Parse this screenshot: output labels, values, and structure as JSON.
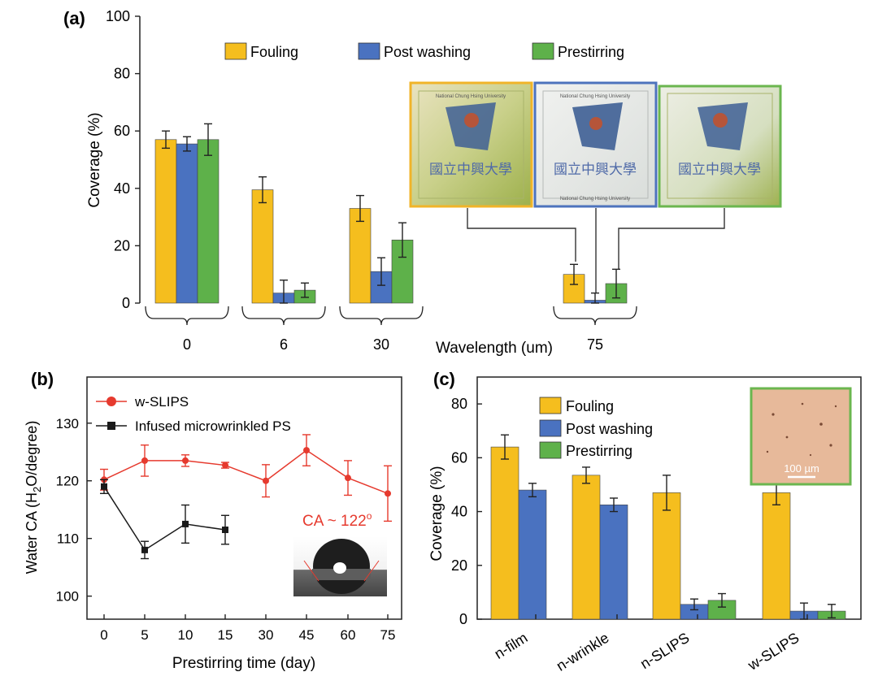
{
  "colors": {
    "fouling": "#F5BE1E",
    "post_washing": "#4A72C0",
    "prestirring": "#5EB14A",
    "wslips": "#E63A2E",
    "infused": "#1a1a1a",
    "photo_border_orange": "#F0B429",
    "photo_border_blue": "#4D73BD",
    "photo_border_green": "#6BB64F",
    "inset_border_green": "#6BB64F",
    "inset_bg": "#E7B99A"
  },
  "chart_data": [
    {
      "panel": "a",
      "panel_label": "(a)",
      "type": "bar",
      "xlabel": "Wavelength (um)",
      "ylabel": "Coverage (%)",
      "ylim": [
        0,
        100
      ],
      "yticks": [
        "0",
        "20",
        "40",
        "60",
        "80",
        "100"
      ],
      "categories": [
        "0",
        "6",
        "30",
        "75"
      ],
      "legend": [
        "Fouling",
        "Post washing",
        "Prestirring"
      ],
      "series": [
        {
          "name": "Fouling",
          "values": [
            57,
            39.5,
            33,
            10
          ],
          "errors": [
            3,
            4.5,
            4.5,
            3.5
          ]
        },
        {
          "name": "Post washing",
          "values": [
            55.5,
            3.5,
            11,
            1
          ],
          "errors": [
            2.5,
            4.5,
            4.8,
            2.5
          ]
        },
        {
          "name": "Prestirring",
          "values": [
            57,
            4.5,
            22,
            6.8
          ],
          "errors": [
            5.5,
            2.5,
            6,
            5
          ]
        }
      ],
      "photo_labels": [
        "National Chung Hsing University",
        "國立中興大學"
      ]
    },
    {
      "panel": "b",
      "panel_label": "(b)",
      "type": "line",
      "xlabel": "Prestirring time (day)",
      "ylabel_main": "Water CA (H",
      "ylabel_sub": "2",
      "ylabel_end": "O/degree)",
      "x_ticks": [
        "0",
        "5",
        "10",
        "15",
        "30",
        "45",
        "60",
        "75"
      ],
      "yticks": [
        "100",
        "110",
        "120",
        "130"
      ],
      "ylim": [
        96,
        138
      ],
      "series": [
        {
          "name": "w-SLIPS",
          "x_index": [
            0,
            1,
            2,
            3,
            4,
            5,
            6,
            7
          ],
          "values": [
            120.2,
            123.5,
            123.5,
            122.7,
            120,
            125.3,
            120.5,
            117.8
          ],
          "errors": [
            1.8,
            2.7,
            1,
            0.5,
            2.8,
            2.7,
            3,
            4.8
          ]
        },
        {
          "name": "Infused microwrinkled PS",
          "x_index": [
            0,
            1,
            2,
            3
          ],
          "values": [
            119,
            108,
            112.5,
            111.5
          ],
          "errors": [
            1.2,
            1.5,
            3.3,
            2.5
          ]
        }
      ],
      "annotation": "CA ~ 122",
      "annotation_sup": "o"
    },
    {
      "panel": "c",
      "panel_label": "(c)",
      "type": "bar",
      "ylabel": "Coverage (%)",
      "ylim": [
        0,
        90
      ],
      "yticks": [
        "0",
        "20",
        "40",
        "60",
        "80"
      ],
      "categories": [
        "n-film",
        "n-wrinkle",
        "n-SLIPS",
        "w-SLIPS"
      ],
      "legend": [
        "Fouling",
        "Post washing",
        "Prestirring"
      ],
      "series": [
        {
          "name": "Fouling",
          "values": [
            64,
            53.5,
            47,
            47
          ],
          "errors": [
            4.5,
            3,
            6.5,
            4.5
          ]
        },
        {
          "name": "Post washing",
          "values": [
            48,
            42.5,
            5.5,
            3
          ],
          "errors": [
            2.5,
            2.5,
            2,
            3
          ]
        },
        {
          "name": "Prestirring",
          "values": [
            null,
            null,
            7,
            3
          ],
          "errors": [
            null,
            null,
            2.5,
            2.5
          ]
        }
      ],
      "scale_bar": "100 µm"
    }
  ]
}
